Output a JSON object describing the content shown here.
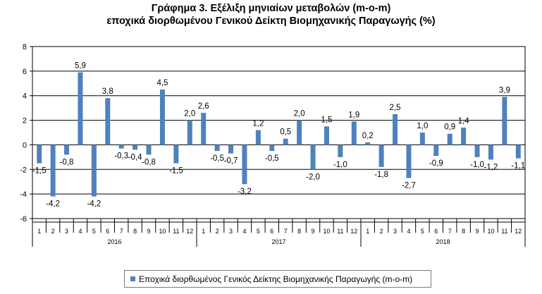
{
  "title_line1": "Γράφημα 3. Εξέλιξη μηνιαίων μεταβολών (m-o-m)",
  "title_line2": "εποχικά διορθωμένου Γενικού Δείκτη Βιομηχανικής Παραγωγής (%)",
  "colors": {
    "bar": "#4f81bd",
    "gridline": "#000000"
  },
  "chart_data": {
    "type": "bar",
    "grid": true,
    "legend": "bottom",
    "ylim": [
      -6,
      8
    ],
    "yticks": [
      -6,
      -4,
      -2,
      0,
      2,
      4,
      6,
      8
    ],
    "years": [
      {
        "label": "2016",
        "months": [
          "1",
          "2",
          "3",
          "4",
          "5",
          "6",
          "7",
          "8",
          "9",
          "10",
          "11",
          "12"
        ]
      },
      {
        "label": "2017",
        "months": [
          "1",
          "2",
          "3",
          "4",
          "5",
          "6",
          "7",
          "8",
          "9",
          "10",
          "11",
          "12"
        ]
      },
      {
        "label": "2018",
        "months": [
          "1",
          "2",
          "3",
          "4",
          "5",
          "6",
          "7",
          "8",
          "9",
          "10",
          "11",
          "12"
        ]
      }
    ],
    "series": [
      {
        "name": "Εποχικά διορθωμένος Γενικός Δείκτης Βιομηχανικής Παραγωγής (m-o-m)",
        "values": [
          -1.5,
          -4.2,
          -0.8,
          5.9,
          -4.2,
          3.8,
          -0.3,
          -0.4,
          -0.8,
          4.5,
          -1.5,
          2.0,
          2.6,
          -0.5,
          -0.7,
          -3.2,
          1.2,
          -0.5,
          0.5,
          2.0,
          -2.0,
          1.5,
          -1.0,
          1.9,
          0.2,
          -1.8,
          2.5,
          -2.7,
          1.0,
          -0.9,
          0.9,
          1.4,
          -1.0,
          -1.2,
          3.9,
          -1.1
        ],
        "labels": [
          "-1,5",
          "-4,2",
          "-0,8",
          "5,9",
          "-4,2",
          "3,8",
          "-0,3",
          "-0,4",
          "-0,8",
          "4,5",
          "-1,5",
          "2,0",
          "2,6",
          "-0,5",
          "-0,7",
          "-3,2",
          "1,2",
          "-0,5",
          "0,5",
          "2,0",
          "-2,0",
          "1,5",
          "-1,0",
          "1,9",
          "0,2",
          "-1,8",
          "2,5",
          "-2,7",
          "1,0",
          "-0,9",
          "0,9",
          "1,4",
          "-1,0",
          "-1,2",
          "3,9",
          "-1,1"
        ]
      }
    ]
  }
}
